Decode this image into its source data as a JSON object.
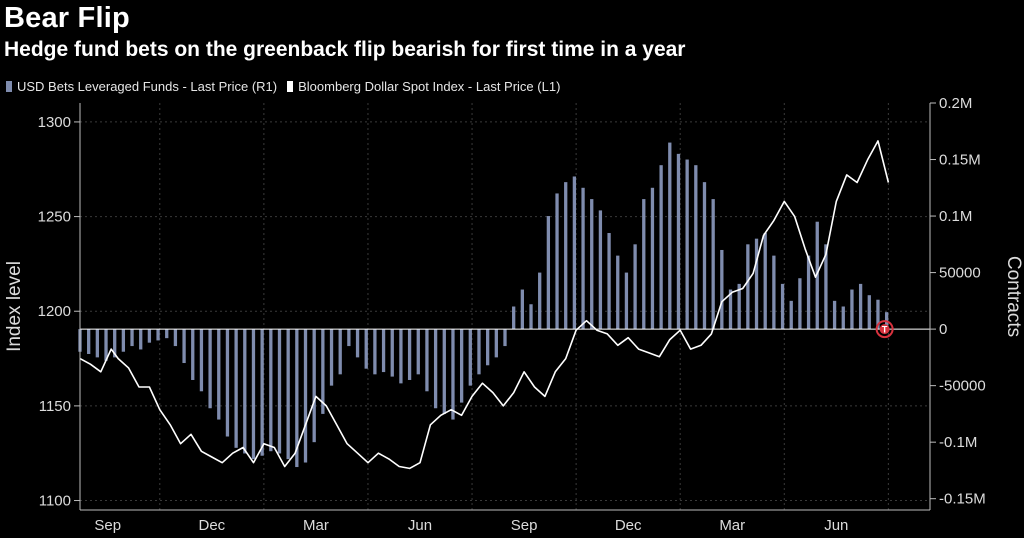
{
  "chart_data": {
    "type": "bar+line",
    "title": "Bear Flip",
    "subtitle": "Hedge fund bets on the greenback flip bearish for first time in a year",
    "legend": [
      {
        "label": "USD Bets Leveraged Funds - Last Price (R1)",
        "color": "#7f8cae"
      },
      {
        "label": "Bloomberg Dollar Spot Index - Last Price (L1)",
        "color": "#ffffff"
      }
    ],
    "y_left": {
      "label": "Index level",
      "ticks": [
        "1100",
        "1150",
        "1200",
        "1250",
        "1300"
      ],
      "range": [
        1095,
        1310
      ]
    },
    "y_right": {
      "label": "Contracts",
      "ticks": [
        "-0.15M",
        "-0.1M",
        "-50000",
        "0",
        "50000",
        "0.1M",
        "0.15M",
        "0.2M"
      ],
      "range": [
        -160000,
        200000
      ]
    },
    "x_ticks": [
      "Sep",
      "Dec",
      "Mar",
      "Jun",
      "Sep",
      "Dec",
      "Mar",
      "Jun"
    ],
    "x_range": [
      0,
      24.5
    ],
    "grid": true,
    "marker": {
      "label": "T",
      "color": "#d8323e"
    },
    "bars": {
      "name": "USD Bets Leveraged Funds - Last Price (R1)",
      "x": [
        0.0,
        0.25,
        0.5,
        0.75,
        1.0,
        1.25,
        1.5,
        1.75,
        2.0,
        2.25,
        2.5,
        2.75,
        3.0,
        3.25,
        3.5,
        3.75,
        4.0,
        4.25,
        4.5,
        4.75,
        5.0,
        5.25,
        5.5,
        5.75,
        6.0,
        6.25,
        6.5,
        6.75,
        7.0,
        7.25,
        7.5,
        7.75,
        8.0,
        8.25,
        8.5,
        8.75,
        9.0,
        9.25,
        9.5,
        9.75,
        10.0,
        10.25,
        10.5,
        10.75,
        11.0,
        11.25,
        11.5,
        11.75,
        12.0,
        12.25,
        12.5,
        12.75,
        13.0,
        13.25,
        13.5,
        13.75,
        14.0,
        14.25,
        14.5,
        14.75,
        15.0,
        15.25,
        15.5,
        15.75,
        16.0,
        16.25,
        16.5,
        16.75,
        17.0,
        17.25,
        17.5,
        17.75,
        18.0,
        18.25,
        18.5,
        18.75,
        19.0,
        19.25,
        19.5,
        19.75,
        20.0,
        20.25,
        20.5,
        20.75,
        21.0,
        21.25,
        21.5,
        21.75,
        22.0,
        22.25,
        22.5,
        22.75,
        23.0,
        23.25
      ],
      "values": [
        -20000,
        -22000,
        -25000,
        -28000,
        -25000,
        -20000,
        -15000,
        -18000,
        -12000,
        -10000,
        -8000,
        -15000,
        -30000,
        -45000,
        -55000,
        -70000,
        -80000,
        -95000,
        -105000,
        -110000,
        -115000,
        -112000,
        -108000,
        -110000,
        -115000,
        -122000,
        -118000,
        -100000,
        -75000,
        -50000,
        -40000,
        -15000,
        -25000,
        -35000,
        -40000,
        -38000,
        -42000,
        -48000,
        -45000,
        -40000,
        -55000,
        -70000,
        -75000,
        -80000,
        -65000,
        -50000,
        -40000,
        -32000,
        -25000,
        -15000,
        20000,
        35000,
        22000,
        50000,
        100000,
        120000,
        130000,
        135000,
        125000,
        115000,
        105000,
        85000,
        65000,
        50000,
        75000,
        115000,
        125000,
        145000,
        165000,
        155000,
        150000,
        145000,
        130000,
        115000,
        70000,
        35000,
        40000,
        75000,
        80000,
        85000,
        65000,
        40000,
        25000,
        45000,
        65000,
        95000,
        75000,
        25000,
        20000,
        35000,
        40000,
        30000,
        26000,
        15000
      ]
    },
    "line": {
      "name": "Bloomberg Dollar Spot Index - Last Price (L1)",
      "x": [
        0.0,
        0.3,
        0.6,
        0.9,
        1.1,
        1.4,
        1.7,
        2.0,
        2.3,
        2.6,
        2.9,
        3.2,
        3.5,
        3.8,
        4.1,
        4.4,
        4.7,
        5.0,
        5.3,
        5.6,
        5.9,
        6.2,
        6.5,
        6.8,
        7.1,
        7.4,
        7.7,
        8.0,
        8.3,
        8.6,
        8.9,
        9.2,
        9.5,
        9.8,
        10.1,
        10.4,
        10.7,
        11.0,
        11.3,
        11.6,
        11.9,
        12.2,
        12.5,
        12.8,
        13.1,
        13.4,
        13.7,
        14.0,
        14.3,
        14.6,
        14.9,
        15.2,
        15.5,
        15.8,
        16.1,
        16.4,
        16.7,
        17.0,
        17.3,
        17.6,
        17.9,
        18.2,
        18.5,
        18.8,
        19.1,
        19.4,
        19.7,
        20.0,
        20.3,
        20.6,
        20.9,
        21.2,
        21.5,
        21.8,
        22.1,
        22.4,
        22.7,
        23.0,
        23.3
      ],
      "values": [
        1175,
        1172,
        1168,
        1180,
        1175,
        1170,
        1160,
        1160,
        1148,
        1140,
        1130,
        1135,
        1126,
        1123,
        1120,
        1125,
        1128,
        1120,
        1130,
        1128,
        1118,
        1125,
        1140,
        1155,
        1150,
        1140,
        1130,
        1125,
        1120,
        1125,
        1122,
        1118,
        1117,
        1120,
        1140,
        1145,
        1148,
        1145,
        1155,
        1162,
        1157,
        1150,
        1157,
        1168,
        1160,
        1155,
        1168,
        1175,
        1190,
        1195,
        1190,
        1188,
        1182,
        1186,
        1180,
        1178,
        1176,
        1185,
        1190,
        1180,
        1182,
        1188,
        1205,
        1210,
        1212,
        1220,
        1240,
        1248,
        1258,
        1250,
        1233,
        1218,
        1230,
        1258,
        1272,
        1268,
        1280,
        1290,
        1268
      ]
    }
  }
}
